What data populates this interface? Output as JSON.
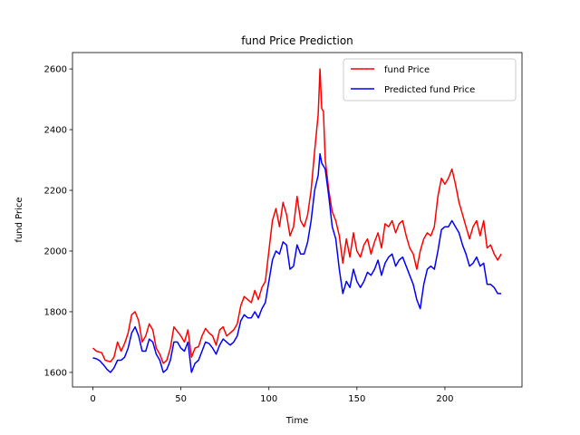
{
  "chart_data": {
    "type": "line",
    "title": "fund Price Prediction",
    "xlabel": "Time",
    "ylabel": "fund Price",
    "xlim": [
      -11.6,
      243.8
    ],
    "ylim": [
      1552,
      2654
    ],
    "xticks": [
      0,
      50,
      100,
      150,
      200
    ],
    "yticks": [
      1600,
      1800,
      2000,
      2200,
      2400,
      2600
    ],
    "legend_position": "top-right",
    "grid": false,
    "series": [
      {
        "name": "fund Price",
        "color": "#ff0000",
        "points": [
          [
            0,
            1680
          ],
          [
            2,
            1670
          ],
          [
            5,
            1665
          ],
          [
            7,
            1640
          ],
          [
            10,
            1635
          ],
          [
            12,
            1650
          ],
          [
            14,
            1700
          ],
          [
            16,
            1670
          ],
          [
            18,
            1695
          ],
          [
            20,
            1730
          ],
          [
            22,
            1790
          ],
          [
            24,
            1800
          ],
          [
            26,
            1770
          ],
          [
            28,
            1700
          ],
          [
            30,
            1720
          ],
          [
            32,
            1760
          ],
          [
            34,
            1740
          ],
          [
            36,
            1680
          ],
          [
            38,
            1660
          ],
          [
            40,
            1630
          ],
          [
            42,
            1640
          ],
          [
            44,
            1680
          ],
          [
            46,
            1750
          ],
          [
            48,
            1735
          ],
          [
            50,
            1720
          ],
          [
            52,
            1700
          ],
          [
            54,
            1740
          ],
          [
            56,
            1650
          ],
          [
            58,
            1680
          ],
          [
            60,
            1685
          ],
          [
            62,
            1720
          ],
          [
            64,
            1745
          ],
          [
            66,
            1730
          ],
          [
            68,
            1720
          ],
          [
            70,
            1690
          ],
          [
            72,
            1740
          ],
          [
            74,
            1750
          ],
          [
            76,
            1720
          ],
          [
            78,
            1730
          ],
          [
            80,
            1740
          ],
          [
            82,
            1760
          ],
          [
            84,
            1820
          ],
          [
            86,
            1850
          ],
          [
            88,
            1840
          ],
          [
            90,
            1830
          ],
          [
            92,
            1870
          ],
          [
            94,
            1840
          ],
          [
            96,
            1880
          ],
          [
            98,
            1900
          ],
          [
            100,
            2000
          ],
          [
            102,
            2100
          ],
          [
            104,
            2140
          ],
          [
            106,
            2080
          ],
          [
            108,
            2160
          ],
          [
            110,
            2120
          ],
          [
            112,
            2050
          ],
          [
            114,
            2080
          ],
          [
            116,
            2180
          ],
          [
            118,
            2100
          ],
          [
            120,
            2080
          ],
          [
            122,
            2120
          ],
          [
            124,
            2200
          ],
          [
            126,
            2330
          ],
          [
            128,
            2450
          ],
          [
            129,
            2600
          ],
          [
            130,
            2470
          ],
          [
            131,
            2460
          ],
          [
            132,
            2300
          ],
          [
            134,
            2200
          ],
          [
            136,
            2130
          ],
          [
            138,
            2100
          ],
          [
            140,
            2050
          ],
          [
            142,
            1960
          ],
          [
            144,
            2040
          ],
          [
            146,
            1980
          ],
          [
            148,
            2060
          ],
          [
            150,
            2000
          ],
          [
            152,
            1980
          ],
          [
            154,
            2020
          ],
          [
            156,
            2040
          ],
          [
            158,
            1990
          ],
          [
            160,
            2030
          ],
          [
            162,
            2060
          ],
          [
            164,
            2010
          ],
          [
            166,
            2090
          ],
          [
            168,
            2080
          ],
          [
            170,
            2100
          ],
          [
            172,
            2060
          ],
          [
            174,
            2090
          ],
          [
            176,
            2100
          ],
          [
            178,
            2050
          ],
          [
            180,
            2010
          ],
          [
            182,
            1990
          ],
          [
            184,
            1940
          ],
          [
            186,
            2000
          ],
          [
            188,
            2040
          ],
          [
            190,
            2060
          ],
          [
            192,
            2050
          ],
          [
            194,
            2080
          ],
          [
            196,
            2180
          ],
          [
            198,
            2240
          ],
          [
            200,
            2220
          ],
          [
            202,
            2240
          ],
          [
            204,
            2270
          ],
          [
            206,
            2220
          ],
          [
            208,
            2160
          ],
          [
            210,
            2120
          ],
          [
            212,
            2080
          ],
          [
            214,
            2040
          ],
          [
            216,
            2080
          ],
          [
            218,
            2100
          ],
          [
            220,
            2050
          ],
          [
            222,
            2100
          ],
          [
            224,
            2010
          ],
          [
            226,
            2020
          ],
          [
            228,
            1990
          ],
          [
            230,
            1970
          ],
          [
            232,
            1990
          ]
        ]
      },
      {
        "name": "Predicted fund Price",
        "color": "#0000ff",
        "points": [
          [
            0,
            1648
          ],
          [
            2,
            1645
          ],
          [
            4,
            1638
          ],
          [
            6,
            1625
          ],
          [
            8,
            1610
          ],
          [
            10,
            1600
          ],
          [
            12,
            1615
          ],
          [
            14,
            1640
          ],
          [
            16,
            1640
          ],
          [
            18,
            1650
          ],
          [
            20,
            1680
          ],
          [
            22,
            1730
          ],
          [
            24,
            1750
          ],
          [
            26,
            1720
          ],
          [
            28,
            1670
          ],
          [
            30,
            1670
          ],
          [
            32,
            1710
          ],
          [
            34,
            1700
          ],
          [
            36,
            1660
          ],
          [
            38,
            1640
          ],
          [
            40,
            1600
          ],
          [
            42,
            1610
          ],
          [
            44,
            1640
          ],
          [
            46,
            1700
          ],
          [
            48,
            1700
          ],
          [
            50,
            1680
          ],
          [
            52,
            1670
          ],
          [
            54,
            1700
          ],
          [
            56,
            1600
          ],
          [
            58,
            1630
          ],
          [
            60,
            1640
          ],
          [
            62,
            1670
          ],
          [
            64,
            1700
          ],
          [
            66,
            1695
          ],
          [
            68,
            1680
          ],
          [
            70,
            1660
          ],
          [
            72,
            1690
          ],
          [
            74,
            1710
          ],
          [
            76,
            1700
          ],
          [
            78,
            1690
          ],
          [
            80,
            1700
          ],
          [
            82,
            1720
          ],
          [
            84,
            1770
          ],
          [
            86,
            1790
          ],
          [
            88,
            1780
          ],
          [
            90,
            1780
          ],
          [
            92,
            1800
          ],
          [
            94,
            1780
          ],
          [
            96,
            1810
          ],
          [
            98,
            1830
          ],
          [
            100,
            1900
          ],
          [
            102,
            1970
          ],
          [
            104,
            2000
          ],
          [
            106,
            1990
          ],
          [
            108,
            2030
          ],
          [
            110,
            2020
          ],
          [
            112,
            1940
          ],
          [
            114,
            1950
          ],
          [
            116,
            2020
          ],
          [
            118,
            1990
          ],
          [
            120,
            1990
          ],
          [
            122,
            2030
          ],
          [
            124,
            2100
          ],
          [
            126,
            2200
          ],
          [
            128,
            2250
          ],
          [
            129,
            2320
          ],
          [
            130,
            2290
          ],
          [
            132,
            2270
          ],
          [
            134,
            2180
          ],
          [
            136,
            2080
          ],
          [
            138,
            2040
          ],
          [
            140,
            1940
          ],
          [
            142,
            1860
          ],
          [
            144,
            1900
          ],
          [
            146,
            1880
          ],
          [
            148,
            1940
          ],
          [
            150,
            1900
          ],
          [
            152,
            1880
          ],
          [
            154,
            1900
          ],
          [
            156,
            1930
          ],
          [
            158,
            1920
          ],
          [
            160,
            1940
          ],
          [
            162,
            1970
          ],
          [
            164,
            1920
          ],
          [
            166,
            1960
          ],
          [
            168,
            1980
          ],
          [
            170,
            1990
          ],
          [
            172,
            1950
          ],
          [
            174,
            1970
          ],
          [
            176,
            1980
          ],
          [
            178,
            1950
          ],
          [
            180,
            1920
          ],
          [
            182,
            1890
          ],
          [
            184,
            1840
          ],
          [
            186,
            1810
          ],
          [
            188,
            1890
          ],
          [
            190,
            1940
          ],
          [
            192,
            1950
          ],
          [
            194,
            1940
          ],
          [
            196,
            2000
          ],
          [
            198,
            2070
          ],
          [
            200,
            2080
          ],
          [
            202,
            2080
          ],
          [
            204,
            2100
          ],
          [
            206,
            2080
          ],
          [
            208,
            2060
          ],
          [
            210,
            2020
          ],
          [
            212,
            1990
          ],
          [
            214,
            1950
          ],
          [
            216,
            1960
          ],
          [
            218,
            1980
          ],
          [
            220,
            1950
          ],
          [
            222,
            1960
          ],
          [
            224,
            1890
          ],
          [
            226,
            1890
          ],
          [
            228,
            1880
          ],
          [
            230,
            1860
          ],
          [
            232,
            1860
          ]
        ]
      }
    ]
  }
}
